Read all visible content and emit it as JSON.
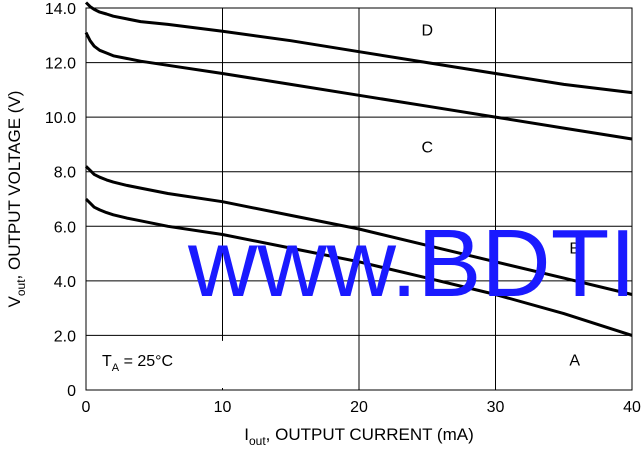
{
  "chart_data": {
    "type": "line",
    "title": "",
    "xlabel": {
      "base": "I",
      "sub": "out",
      "rest": ", OUTPUT CURRENT (mA)"
    },
    "ylabel": {
      "base": "V",
      "sub": "out",
      "rest": ", OUTPUT VOLTAGE (V)"
    },
    "xlim": [
      0,
      40
    ],
    "ylim": [
      0,
      14
    ],
    "x_ticks": [
      "0",
      "10",
      "20",
      "30",
      "40"
    ],
    "y_ticks": [
      "0",
      "2.0",
      "4.0",
      "6.0",
      "8.0",
      "10.0",
      "12.0",
      "14.0"
    ],
    "grid": true,
    "series": [
      {
        "name": "A",
        "x": [
          0,
          0.3,
          0.6,
          1,
          1.5,
          2,
          3,
          4,
          6,
          10,
          15,
          20,
          25,
          30,
          35,
          40
        ],
        "y": [
          7.0,
          6.85,
          6.7,
          6.6,
          6.5,
          6.42,
          6.3,
          6.2,
          6.0,
          5.7,
          5.2,
          4.7,
          4.1,
          3.5,
          2.8,
          2.0
        ]
      },
      {
        "name": "B",
        "x": [
          0,
          0.3,
          0.6,
          1,
          1.5,
          2,
          3,
          4,
          6,
          10,
          15,
          20,
          25,
          30,
          35,
          40
        ],
        "y": [
          8.2,
          8.05,
          7.9,
          7.8,
          7.7,
          7.62,
          7.5,
          7.4,
          7.2,
          6.9,
          6.4,
          5.9,
          5.3,
          4.7,
          4.1,
          3.5
        ]
      },
      {
        "name": "C",
        "x": [
          0,
          0.3,
          0.6,
          1,
          1.5,
          2,
          3,
          4,
          6,
          10,
          15,
          20,
          25,
          30,
          35,
          40
        ],
        "y": [
          13.1,
          12.8,
          12.6,
          12.45,
          12.35,
          12.25,
          12.15,
          12.05,
          11.9,
          11.6,
          11.2,
          10.8,
          10.4,
          10.0,
          9.6,
          9.2
        ]
      },
      {
        "name": "D",
        "x": [
          0,
          0.3,
          0.6,
          1,
          1.5,
          2,
          3,
          4,
          6,
          10,
          15,
          20,
          25,
          30,
          35,
          40
        ],
        "y": [
          14.2,
          14.05,
          13.95,
          13.85,
          13.78,
          13.7,
          13.6,
          13.5,
          13.4,
          13.15,
          12.8,
          12.4,
          12.0,
          11.6,
          11.2,
          10.9
        ]
      }
    ],
    "series_labels": [
      {
        "text": "A",
        "x": 35.8,
        "y": 0.9
      },
      {
        "text": "B",
        "x": 35.8,
        "y": 5.0
      },
      {
        "text": "C",
        "x": 25.0,
        "y": 8.7
      },
      {
        "text": "D",
        "x": 25.0,
        "y": 13.0
      }
    ],
    "annotation": {
      "base": "T",
      "sub": "A",
      "rest": " = 25°C"
    },
    "watermark": "www.BDTI"
  }
}
